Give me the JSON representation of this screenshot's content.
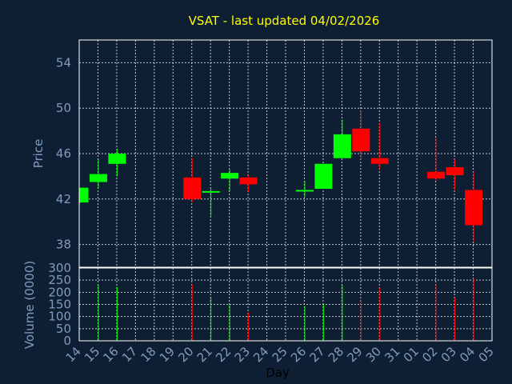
{
  "chart_data": {
    "type": "candlestick",
    "title": "VSAT - last updated 04/02/2026",
    "xlabel": "Day",
    "price_panel": {
      "ylabel": "Price",
      "ylim": [
        36,
        56
      ],
      "yticks": [
        "38",
        "42",
        "46",
        "50",
        "54"
      ],
      "grid": true
    },
    "volume_panel": {
      "ylabel": "Volume (0000)",
      "ylim": [
        0,
        300
      ],
      "yticks": [
        "0",
        "50",
        "100",
        "150",
        "200",
        "250",
        "300"
      ],
      "grid": true
    },
    "x_tick_labels": [
      "14",
      "15",
      "16",
      "17",
      "18",
      "19",
      "20",
      "21",
      "22",
      "23",
      "24",
      "25",
      "26",
      "27",
      "28",
      "29",
      "30",
      "31",
      "01",
      "02",
      "03",
      "04",
      "05"
    ],
    "up_color": "#00ff00",
    "down_color": "#ff0000",
    "candles": [
      {
        "day": "14",
        "open": 41.7,
        "high": 43.0,
        "low": 41.6,
        "close": 43.0,
        "volume": null
      },
      {
        "day": "15",
        "open": 43.5,
        "high": 45.5,
        "low": 42.9,
        "close": 44.2,
        "volume": 232
      },
      {
        "day": "16",
        "open": 45.1,
        "high": 46.4,
        "low": 44.0,
        "close": 46.0,
        "volume": 222
      },
      {
        "day": "20",
        "open": 43.9,
        "high": 45.6,
        "low": 41.7,
        "close": 42.0,
        "volume": 233
      },
      {
        "day": "21",
        "open": 42.6,
        "high": 42.9,
        "low": 40.5,
        "close": 42.7,
        "volume": 181
      },
      {
        "day": "22",
        "open": 43.8,
        "high": 44.6,
        "low": 42.7,
        "close": 44.3,
        "volume": 152
      },
      {
        "day": "23",
        "open": 43.9,
        "high": 44.1,
        "low": 42.6,
        "close": 43.3,
        "volume": 118
      },
      {
        "day": "26",
        "open": 42.7,
        "high": 43.6,
        "low": 42.2,
        "close": 42.8,
        "volume": 143
      },
      {
        "day": "27",
        "open": 42.9,
        "high": 45.1,
        "low": 42.9,
        "close": 45.1,
        "volume": 150
      },
      {
        "day": "28",
        "open": 45.6,
        "high": 49.0,
        "low": 45.6,
        "close": 47.7,
        "volume": 232
      },
      {
        "day": "29",
        "open": 48.2,
        "high": 49.8,
        "low": 45.5,
        "close": 46.2,
        "volume": 172
      },
      {
        "day": "30",
        "open": 45.6,
        "high": 48.7,
        "low": 44.6,
        "close": 45.1,
        "volume": 220
      },
      {
        "day": "02",
        "open": 44.4,
        "high": 47.4,
        "low": 43.6,
        "close": 43.8,
        "volume": 233
      },
      {
        "day": "03",
        "open": 44.8,
        "high": 45.5,
        "low": 42.8,
        "close": 44.1,
        "volume": 178
      },
      {
        "day": "04",
        "open": 42.8,
        "high": 44.4,
        "low": 38.2,
        "close": 39.7,
        "volume": 258
      }
    ]
  }
}
